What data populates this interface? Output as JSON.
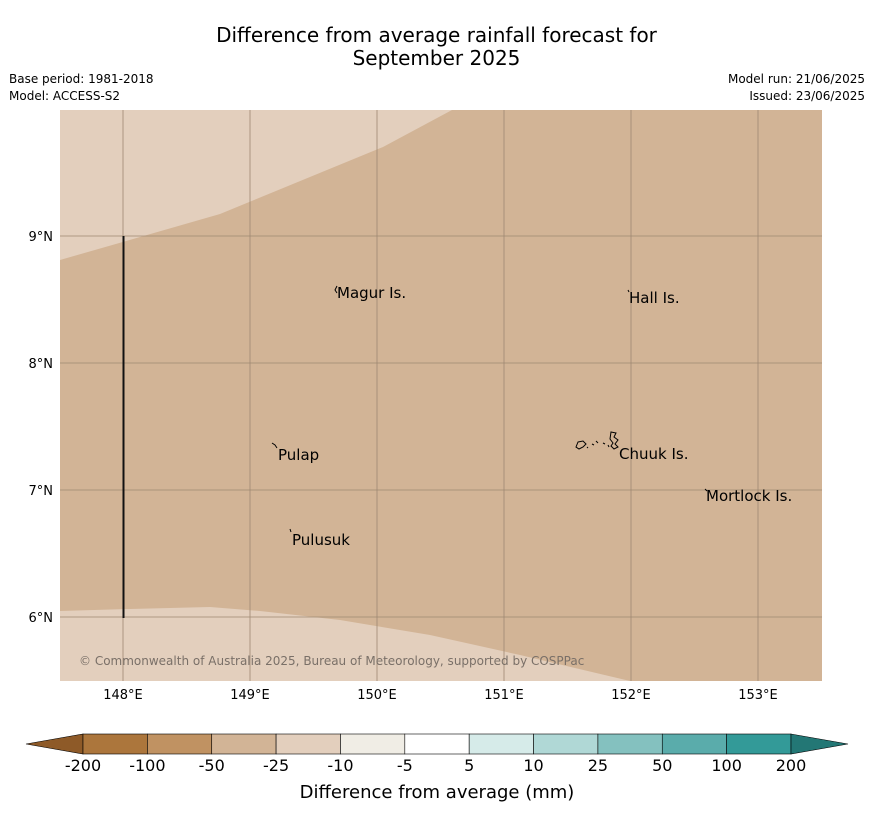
{
  "title": {
    "line1": "Difference from average rainfall forecast for",
    "line2": "September 2025"
  },
  "meta": {
    "base_period": "Base period: 1981-2018",
    "model": "Model: ACCESS-S2",
    "model_run": "Model run: 21/06/2025",
    "issued": "Issued: 23/06/2025"
  },
  "map": {
    "lon_ticks": [
      "148°E",
      "149°E",
      "150°E",
      "151°E",
      "152°E",
      "153°E"
    ],
    "lat_ticks": [
      "9°N",
      "8°N",
      "7°N",
      "6°N"
    ],
    "places": [
      "Magur Is.",
      "Hall Is.",
      "Pulap",
      "Chuuk Is.",
      "Mortlock Is.",
      "Pulusuk"
    ],
    "copyright": "© Commonwealth of Australia 2025, Bureau of Meteorology, supported by COSPPac",
    "colors": {
      "main_fill": "#d2b496",
      "light_fill": "#e3cfbd",
      "grid": "#9e8872"
    }
  },
  "colorbar": {
    "labels": [
      "-200",
      "-100",
      "-50",
      "-25",
      "-10",
      "-5",
      "5",
      "10",
      "25",
      "50",
      "100",
      "200"
    ],
    "colors": [
      "#ac763c",
      "#c09262",
      "#d2b496",
      "#e3cfbd",
      "#f0ede5",
      "#ffffff",
      "#d6ebe9",
      "#b0d8d6",
      "#84c1bf",
      "#5aacab",
      "#339a98"
    ],
    "low_extend_color": "#8e5a28",
    "high_extend_color": "#237775",
    "xlabel": "Difference from average (mm)"
  }
}
